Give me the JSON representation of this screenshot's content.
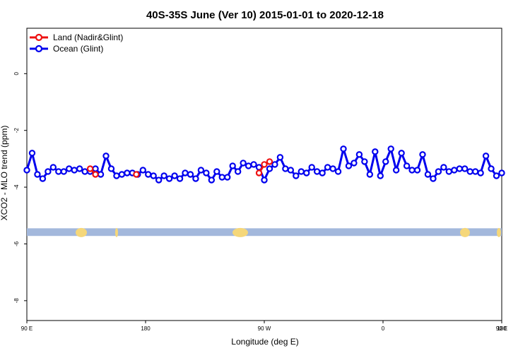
{
  "chart_data": {
    "type": "line",
    "title": "40S-35S June (Ver 10)   2015-01-01 to 2020-12-18",
    "xlabel": "Longitude (deg E)",
    "ylabel": "XCO2 - MLO trend (ppm)",
    "xlim": [
      90,
      450
    ],
    "ylim": [
      -8.7,
      1.6
    ],
    "x_ticks": [
      {
        "value": 90,
        "label": "90 E"
      },
      {
        "value": 180,
        "label": "180"
      },
      {
        "value": 270,
        "label": "90 W"
      },
      {
        "value": 360,
        "label": "0"
      },
      {
        "value": 450,
        "label": "90 E"
      },
      {
        "value": 540,
        "label": "180"
      }
    ],
    "y_ticks": [
      0,
      -2,
      -4,
      -6,
      -8
    ],
    "grid": false,
    "legend_position": "top-left",
    "land_band": {
      "y_top": -5.45,
      "y_bottom": -5.72,
      "color": "#a3b8dc",
      "land_color": "#f5d77a"
    },
    "series": [
      {
        "name": "Land (Nadir&Glint)",
        "color": "#ee1111",
        "x": [
          138,
          142,
          173,
          266,
          270,
          274
        ],
        "y": [
          -3.35,
          -3.55,
          -3.55,
          -3.5,
          -3.2,
          -3.1
        ]
      },
      {
        "name": "Ocean (Glint)",
        "color": "#0000ee",
        "x": [
          90,
          94,
          98,
          102,
          106,
          110,
          114,
          118,
          122,
          126,
          130,
          134,
          138,
          142,
          146,
          150,
          154,
          158,
          162,
          166,
          170,
          174,
          178,
          182,
          186,
          190,
          194,
          198,
          202,
          206,
          210,
          214,
          218,
          222,
          226,
          230,
          234,
          238,
          242,
          246,
          250,
          254,
          258,
          262,
          266,
          270,
          274,
          278,
          282,
          286,
          290,
          294,
          298,
          302,
          306,
          310,
          314,
          318,
          322,
          326,
          330,
          334,
          338,
          342,
          346,
          350,
          354,
          358,
          362,
          366,
          370,
          374,
          378,
          382,
          386,
          390,
          394,
          398,
          402,
          406,
          410,
          414,
          418,
          422,
          426,
          430,
          434,
          438,
          442,
          446,
          450
        ],
        "y": [
          -3.4,
          -2.8,
          -3.55,
          -3.7,
          -3.45,
          -3.3,
          -3.45,
          -3.45,
          -3.35,
          -3.4,
          -3.35,
          -3.45,
          -3.45,
          -3.35,
          -3.55,
          -2.9,
          -3.35,
          -3.6,
          -3.55,
          -3.5,
          -3.5,
          -3.55,
          -3.4,
          -3.55,
          -3.6,
          -3.75,
          -3.6,
          -3.7,
          -3.6,
          -3.7,
          -3.5,
          -3.55,
          -3.7,
          -3.4,
          -3.5,
          -3.75,
          -3.45,
          -3.65,
          -3.65,
          -3.25,
          -3.45,
          -3.15,
          -3.25,
          -3.2,
          -3.3,
          -3.75,
          -3.35,
          -3.2,
          -2.95,
          -3.35,
          -3.4,
          -3.6,
          -3.45,
          -3.5,
          -3.3,
          -3.45,
          -3.5,
          -3.3,
          -3.35,
          -3.45,
          -2.65,
          -3.25,
          -3.15,
          -2.85,
          -3.1,
          -3.55,
          -2.75,
          -3.6,
          -3.1,
          -2.65,
          -3.4,
          -2.8,
          -3.25,
          -3.4,
          -3.4,
          -2.85,
          -3.55,
          -3.7,
          -3.45,
          -3.3,
          -3.45,
          -3.4,
          -3.35,
          -3.35,
          -3.45,
          -3.45,
          -3.5,
          -2.9,
          -3.35,
          -3.6,
          -3.5
        ]
      }
    ]
  }
}
